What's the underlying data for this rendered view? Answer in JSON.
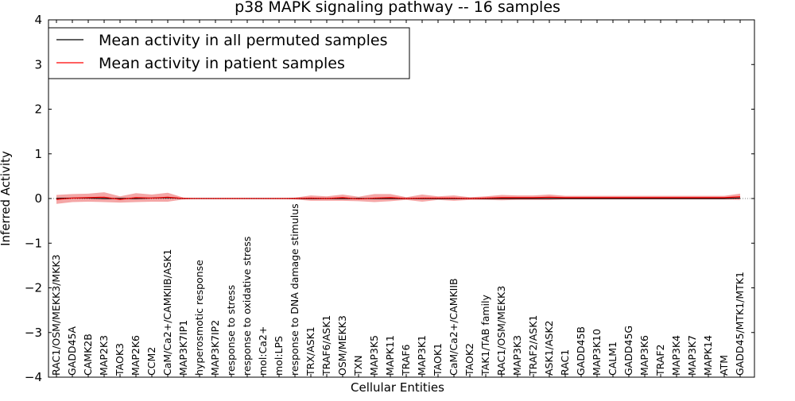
{
  "chart_data": {
    "type": "line",
    "title": "p38 MAPK signaling pathway -- 16 samples",
    "xlabel": "Cellular Entities",
    "ylabel": "Inferred Activity",
    "ylim": [
      -4,
      4
    ],
    "yticks": [
      -4,
      -3,
      -2,
      -1,
      0,
      1,
      2,
      3,
      4
    ],
    "ytick_labels": [
      "−4",
      "−3",
      "−2",
      "−1",
      "0",
      "1",
      "2",
      "3",
      "4"
    ],
    "grid": false,
    "legend_position": "top-left",
    "colors": {
      "permuted": "#000000",
      "patient": "#ff0000",
      "patient_band": "#f08080",
      "permuted_band": "#c8c8c8",
      "frame": "#000000"
    },
    "categories": [
      "RAC1/OSM/MEKK3/MKK3",
      "GADD45A",
      "CAMK2B",
      "MAP2K3",
      "TAOK3",
      "MAP2K6",
      "CCM2",
      "CaM/Ca2+/CAMKIIB/ASK1",
      "MAP3K7IP1",
      "hyperosmotic response",
      "MAP3K7IP2",
      "response to stress",
      "response to oxidative stress",
      "mol:Ca2+",
      "mol:LPS",
      "response to DNA damage stimulus",
      "TRX/ASK1",
      "TRAF6/ASK1",
      "OSM/MEKK3",
      "TXN",
      "MAP3K5",
      "MAPK11",
      "TRAF6",
      "MAP3K1",
      "TAOK1",
      "CaM/Ca2+/CAMKIIB",
      "TAOK2",
      "TAK1/TAB family",
      "RAC1/OSM/MEKK3",
      "MAP3K3",
      "TRAF2/ASK1",
      "ASK1/ASK2",
      "RAC1",
      "GADD45B",
      "MAP3K10",
      "CALM1",
      "GADD45G",
      "MAP3K6",
      "TRAF2",
      "MAP3K4",
      "MAP3K7",
      "MAPK14",
      "ATM",
      "GADD45/MTK1/MTK1"
    ],
    "series": [
      {
        "name": "Mean activity in all permuted samples",
        "values": [
          0.0,
          0.01,
          0.01,
          0.0,
          0.0,
          0.0,
          0.01,
          0.02,
          0.0,
          0.0,
          0.0,
          0.0,
          0.0,
          0.0,
          0.0,
          0.0,
          0.0,
          0.0,
          0.0,
          0.0,
          0.0,
          0.0,
          0.0,
          0.0,
          0.0,
          0.0,
          0.0,
          0.0,
          0.0,
          0.0,
          0.0,
          0.0,
          0.0,
          0.0,
          0.0,
          0.0,
          0.0,
          0.0,
          0.0,
          0.0,
          0.0,
          0.0,
          0.0,
          0.01
        ],
        "band": [
          0.02,
          0.02,
          0.02,
          0.02,
          0.02,
          0.02,
          0.02,
          0.02,
          0.01,
          0.0,
          0.0,
          0.0,
          0.0,
          0.0,
          0.0,
          0.01,
          0.02,
          0.02,
          0.02,
          0.02,
          0.02,
          0.02,
          0.02,
          0.02,
          0.02,
          0.02,
          0.02,
          0.02,
          0.02,
          0.02,
          0.02,
          0.02,
          0.02,
          0.02,
          0.02,
          0.02,
          0.02,
          0.02,
          0.02,
          0.02,
          0.02,
          0.02,
          0.02,
          0.02
        ]
      },
      {
        "name": "Mean activity in patient samples",
        "values": [
          -0.02,
          0.01,
          0.02,
          0.03,
          -0.02,
          0.02,
          0.01,
          0.03,
          0.0,
          0.0,
          0.0,
          0.0,
          0.0,
          0.0,
          0.0,
          0.0,
          0.01,
          0.0,
          0.02,
          -0.01,
          0.01,
          0.02,
          0.0,
          0.01,
          0.01,
          0.01,
          0.0,
          0.01,
          0.02,
          0.02,
          0.02,
          0.03,
          0.02,
          0.02,
          0.02,
          0.02,
          0.02,
          0.02,
          0.02,
          0.02,
          0.02,
          0.02,
          0.02,
          0.04
        ],
        "band": [
          0.1,
          0.09,
          0.09,
          0.11,
          0.07,
          0.1,
          0.08,
          0.1,
          0.02,
          0.0,
          0.0,
          0.0,
          0.0,
          0.0,
          0.0,
          0.02,
          0.06,
          0.05,
          0.07,
          0.05,
          0.09,
          0.08,
          0.03,
          0.08,
          0.04,
          0.06,
          0.03,
          0.04,
          0.06,
          0.05,
          0.05,
          0.06,
          0.04,
          0.04,
          0.04,
          0.04,
          0.04,
          0.04,
          0.04,
          0.04,
          0.04,
          0.04,
          0.04,
          0.07
        ]
      }
    ]
  }
}
